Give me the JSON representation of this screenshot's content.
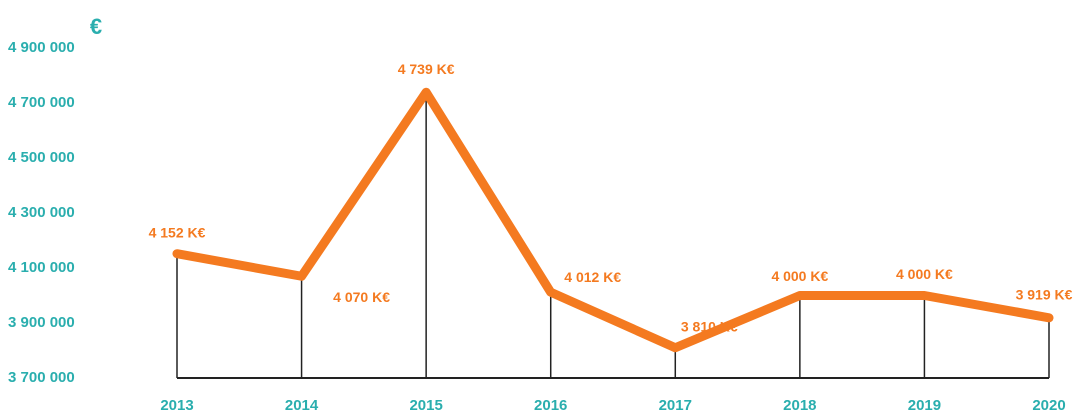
{
  "chart_data": {
    "type": "line",
    "y_axis_label": "€",
    "categories": [
      "2013",
      "2014",
      "2015",
      "2016",
      "2017",
      "2018",
      "2019",
      "2020"
    ],
    "values": [
      4152000,
      4070000,
      4739000,
      4012000,
      3810000,
      4000000,
      4000000,
      3919000
    ],
    "value_labels": [
      "4 152 K€",
      "4 070 K€",
      "4 739 K€",
      "4 012 K€",
      "3 810 K€",
      "4 000 K€",
      "4 000 K€",
      "3 919 K€"
    ],
    "color": "#f47a20",
    "axis_color": "#2aaeae",
    "ylim": [
      3700000,
      4900000
    ],
    "yticks": [
      {
        "value": 3700000,
        "label": "3 700 000"
      },
      {
        "value": 3900000,
        "label": "3 900 000"
      },
      {
        "value": 4100000,
        "label": "4 100 000"
      },
      {
        "value": 4300000,
        "label": "4 300 000"
      },
      {
        "value": 4500000,
        "label": "4 500 000"
      },
      {
        "value": 4700000,
        "label": "4 700 000"
      },
      {
        "value": 4900000,
        "label": "4 900 000"
      }
    ]
  }
}
